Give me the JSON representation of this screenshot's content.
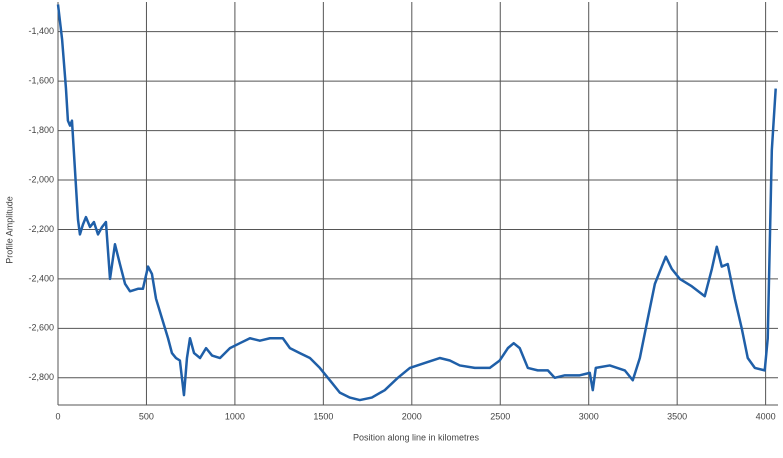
{
  "chart_data": {
    "type": "line",
    "x_label": "Position along line in kilometres",
    "y_label": "Profile Amplitude",
    "xlim": [
      0,
      4070
    ],
    "ylim": [
      -2910,
      -1280
    ],
    "xticks": [
      0,
      500,
      1000,
      1500,
      2000,
      2500,
      3000,
      3500,
      4000
    ],
    "yticks": [
      {
        "value": -1400,
        "label": "-1,400"
      },
      {
        "value": -1600,
        "label": "-1,600"
      },
      {
        "value": -1800,
        "label": "-1,800"
      },
      {
        "value": -2000,
        "label": "-2,000"
      },
      {
        "value": -2200,
        "label": "-2,200"
      },
      {
        "value": -2400,
        "label": "-2,400"
      },
      {
        "value": -2600,
        "label": "-2,600"
      },
      {
        "value": -2800,
        "label": "-2,800"
      }
    ],
    "grid": true,
    "series": [
      {
        "color": "#1f5fa8",
        "x": [
          0,
          23,
          45,
          56,
          68,
          79,
          96,
          113,
          124,
          141,
          158,
          181,
          203,
          226,
          249,
          271,
          294,
          322,
          350,
          379,
          407,
          452,
          480,
          509,
          531,
          554,
          588,
          622,
          644,
          667,
          689,
          712,
          729,
          746,
          769,
          803,
          837,
          871,
          916,
          972,
          1028,
          1085,
          1141,
          1198,
          1271,
          1311,
          1367,
          1424,
          1480,
          1537,
          1593,
          1650,
          1706,
          1774,
          1847,
          1921,
          1989,
          2074,
          2158,
          2215,
          2271,
          2356,
          2441,
          2497,
          2543,
          2576,
          2610,
          2656,
          2712,
          2769,
          2808,
          2865,
          2949,
          3006,
          3023,
          3040,
          3119,
          3204,
          3249,
          3289,
          3334,
          3374,
          3413,
          3436,
          3470,
          3515,
          3583,
          3656,
          3696,
          3724,
          3752,
          3786,
          3826,
          3865,
          3899,
          3939,
          3995,
          4012,
          4035,
          4057
        ],
        "values": [
          -1290,
          -1430,
          -1630,
          -1760,
          -1780,
          -1760,
          -1960,
          -2160,
          -2220,
          -2180,
          -2150,
          -2190,
          -2170,
          -2220,
          -2190,
          -2170,
          -2400,
          -2260,
          -2340,
          -2420,
          -2450,
          -2440,
          -2440,
          -2350,
          -2380,
          -2480,
          -2560,
          -2640,
          -2700,
          -2720,
          -2730,
          -2870,
          -2720,
          -2640,
          -2700,
          -2720,
          -2680,
          -2710,
          -2720,
          -2680,
          -2660,
          -2640,
          -2650,
          -2640,
          -2640,
          -2680,
          -2700,
          -2720,
          -2760,
          -2810,
          -2860,
          -2880,
          -2890,
          -2880,
          -2850,
          -2800,
          -2760,
          -2740,
          -2720,
          -2730,
          -2750,
          -2760,
          -2760,
          -2730,
          -2680,
          -2660,
          -2680,
          -2760,
          -2770,
          -2770,
          -2800,
          -2790,
          -2790,
          -2780,
          -2850,
          -2760,
          -2750,
          -2770,
          -2810,
          -2720,
          -2560,
          -2420,
          -2350,
          -2310,
          -2360,
          -2400,
          -2430,
          -2470,
          -2360,
          -2270,
          -2350,
          -2340,
          -2480,
          -2600,
          -2720,
          -2760,
          -2770,
          -2640,
          -1880,
          -1630
        ]
      }
    ]
  }
}
